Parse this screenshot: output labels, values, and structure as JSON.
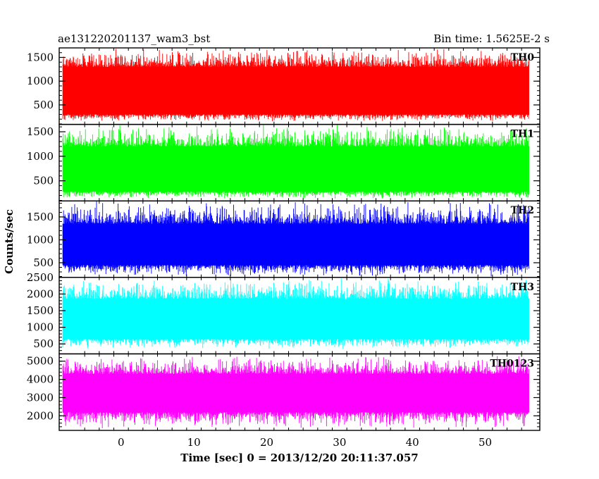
{
  "header": {
    "title": "ae131220201137_wam3_bst",
    "bin_time": "Bin time: 1.5625E-2 s"
  },
  "chart_data": {
    "type": "line",
    "title": "ae131220201137_wam3_bst",
    "xlabel": "Time [sec] 0 = 2013/12/20 20:11:37.057",
    "ylabel": "Counts/sec",
    "xlim": [
      -8.5,
      57.5
    ],
    "x_range_data": [
      -8,
      56
    ],
    "x_ticks": [
      0,
      10,
      20,
      30,
      40,
      50
    ],
    "x_tick_labels": [
      "0",
      "10",
      "20",
      "30",
      "40",
      "50"
    ],
    "grid": false,
    "panels": [
      {
        "name": "TH0",
        "color": "#ff0000",
        "ylim": [
          90,
          1700
        ],
        "y_ticks": [
          500,
          1000,
          1500
        ],
        "y_tick_labels": [
          "500",
          "1000",
          "1500"
        ],
        "stats": {
          "low": 300,
          "high": 1300,
          "min": 150,
          "max": 1700
        }
      },
      {
        "name": "TH1",
        "color": "#00ff00",
        "ylim": [
          90,
          1650
        ],
        "y_ticks": [
          500,
          1000,
          1500
        ],
        "y_tick_labels": [
          "500",
          "1000",
          "1500"
        ],
        "stats": {
          "low": 280,
          "high": 1200,
          "min": 130,
          "max": 1650
        }
      },
      {
        "name": "TH2",
        "color": "#0000ff",
        "ylim": [
          180,
          1850
        ],
        "y_ticks": [
          500,
          1000,
          1500
        ],
        "y_tick_labels": [
          "500",
          "1000",
          "1500"
        ],
        "stats": {
          "low": 450,
          "high": 1350,
          "min": 200,
          "max": 1850
        }
      },
      {
        "name": "TH3",
        "color": "#00ffff",
        "ylim": [
          200,
          2500
        ],
        "y_ticks": [
          500,
          1000,
          1500,
          2000,
          2500
        ],
        "y_tick_labels": [
          "500",
          "1000",
          "1500",
          "2000",
          "2500"
        ],
        "stats": {
          "low": 650,
          "high": 1850,
          "min": 350,
          "max": 2500
        }
      },
      {
        "name": "TH0123",
        "color": "#ff00ff",
        "ylim": [
          1200,
          5400
        ],
        "y_ticks": [
          2000,
          3000,
          4000,
          5000
        ],
        "y_tick_labels": [
          "2000",
          "3000",
          "4000",
          "5000"
        ],
        "stats": {
          "low": 2200,
          "high": 4300,
          "min": 1300,
          "max": 5300
        }
      }
    ]
  }
}
